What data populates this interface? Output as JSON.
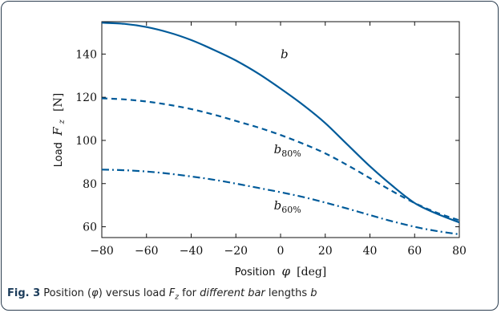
{
  "figure": {
    "caption_label": "Fig. 3",
    "caption_part1": "Position (",
    "caption_phi": "φ",
    "caption_part2": ") versus load ",
    "caption_F": "F",
    "caption_Fsub": "z",
    "caption_part3": " for ",
    "caption_italic": "different bar",
    "caption_part4": " lengths ",
    "caption_b": "b"
  },
  "colors": {
    "line": "#005b9a",
    "frame": "#2c3e50",
    "caption_label": "#1b3b5a"
  },
  "chart_data": {
    "type": "line",
    "xlabel_text": "Position",
    "xlabel_symbol": "φ",
    "xlabel_unit": "[deg]",
    "ylabel_text": "Load",
    "ylabel_symbol": "F",
    "ylabel_sub": "z",
    "ylabel_unit": "[N]",
    "xlim": [
      -80,
      80
    ],
    "ylim": [
      55,
      155
    ],
    "xticks": [
      -80,
      -60,
      -40,
      -20,
      0,
      20,
      40,
      60,
      80
    ],
    "xtick_labels": [
      "−80",
      "−60",
      "−40",
      "−20",
      "0",
      "20",
      "40",
      "60",
      "80"
    ],
    "yticks": [
      60,
      80,
      100,
      120,
      140
    ],
    "ytick_labels": [
      "60",
      "80",
      "100",
      "120",
      "140"
    ],
    "grid": false,
    "series": [
      {
        "name": "b",
        "label_main": "b",
        "label_sub": "",
        "label_at": [
          0,
          138
        ],
        "style": "solid",
        "x": [
          -80,
          -70,
          -60,
          -50,
          -40,
          -30,
          -20,
          -10,
          0,
          10,
          20,
          30,
          40,
          50,
          60,
          70,
          80
        ],
        "y": [
          154.5,
          154,
          152.5,
          150,
          146.5,
          142,
          137,
          131,
          124,
          116.5,
          108,
          98,
          88,
          79,
          71,
          66,
          62
        ]
      },
      {
        "name": "b80%",
        "label_main": "b",
        "label_sub": "80%",
        "label_at": [
          -3,
          94
        ],
        "style": "dashed",
        "x": [
          -80,
          -70,
          -60,
          -50,
          -40,
          -30,
          -20,
          -10,
          0,
          10,
          20,
          30,
          40,
          50,
          60,
          70,
          80
        ],
        "y": [
          119.5,
          119,
          118,
          116.5,
          114.5,
          112,
          109,
          106,
          102.5,
          98.5,
          94,
          88.5,
          82.5,
          76.5,
          71,
          66.5,
          63
        ]
      },
      {
        "name": "b60%",
        "label_main": "b",
        "label_sub": "60%",
        "label_at": [
          -3,
          68
        ],
        "style": "dashdot",
        "x": [
          -80,
          -70,
          -60,
          -50,
          -40,
          -30,
          -20,
          -10,
          0,
          10,
          20,
          30,
          40,
          50,
          60,
          70,
          80
        ],
        "y": [
          86.5,
          86.2,
          85.6,
          84.6,
          83.3,
          81.8,
          80,
          78,
          76,
          73.8,
          71.2,
          68.4,
          65.4,
          62.5,
          60,
          58,
          56.5
        ]
      }
    ]
  }
}
